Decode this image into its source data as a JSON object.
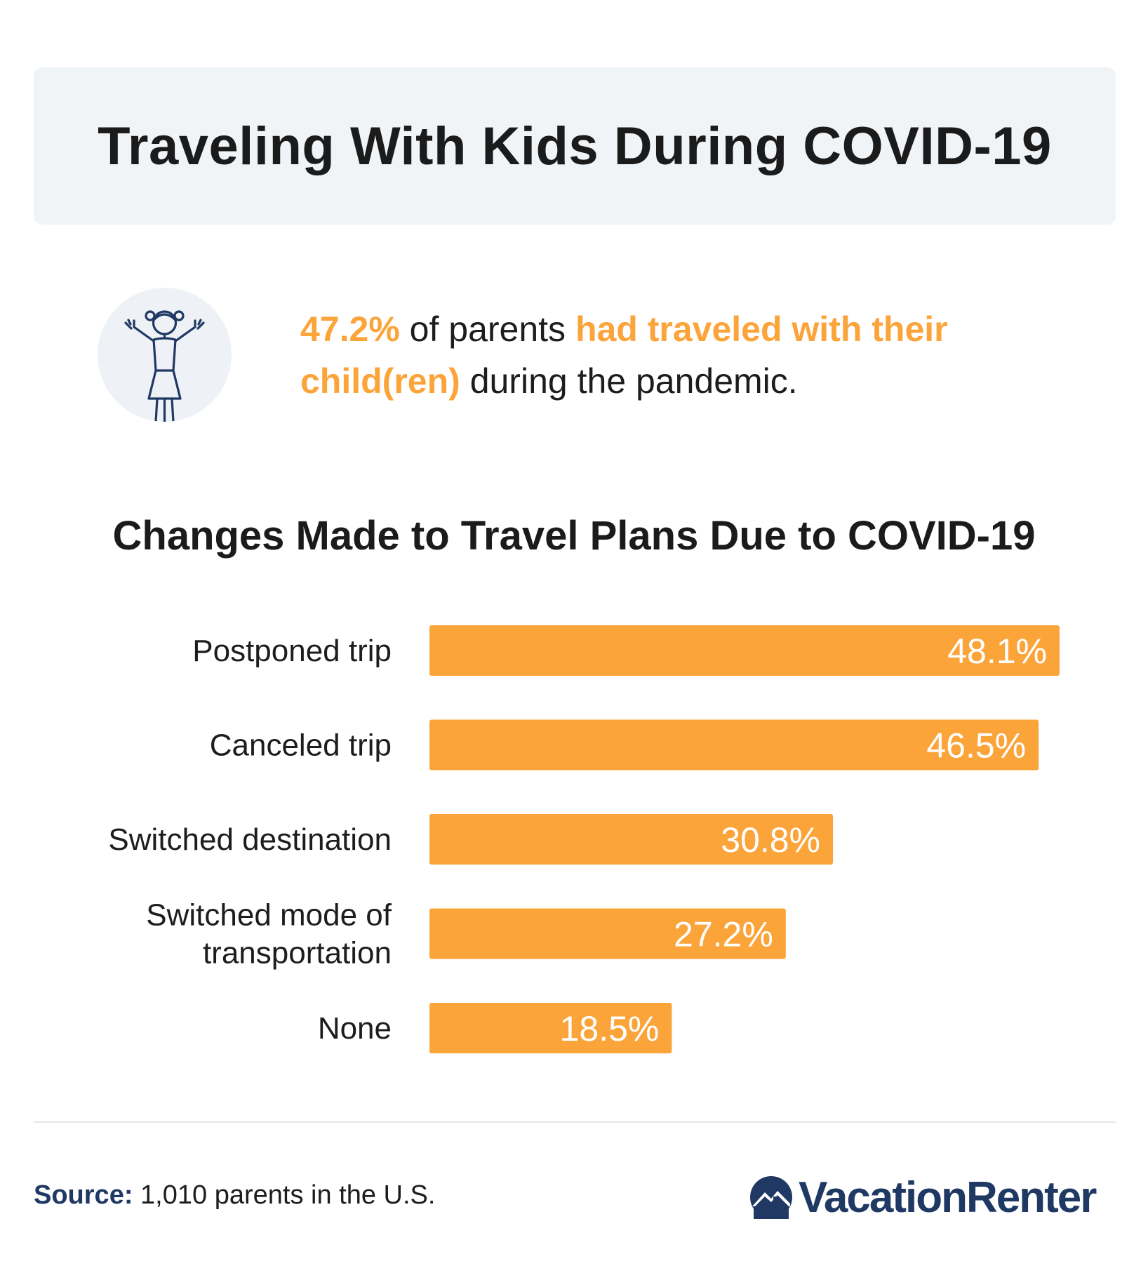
{
  "header": {
    "title": "Traveling With Kids During COVID-19"
  },
  "stat": {
    "percent": "47.2%",
    "text_1": " of parents ",
    "highlight": "had traveled with their child(ren)",
    "text_2": " during the pandemic.",
    "icon": "girl-arms-raised-icon"
  },
  "chart_data": {
    "type": "bar",
    "orientation": "horizontal",
    "title": "Changes Made to Travel Plans Due to COVID-19",
    "categories": [
      [
        "Postponed trip"
      ],
      [
        "Canceled trip"
      ],
      [
        "Switched destination"
      ],
      [
        "Switched mode of",
        "transportation"
      ],
      [
        "None"
      ]
    ],
    "values": [
      48.1,
      46.5,
      30.8,
      27.2,
      18.5
    ],
    "value_labels": [
      "48.1%",
      "46.5%",
      "30.8%",
      "27.2%",
      "18.5%"
    ],
    "xlim": [
      0,
      48.1
    ],
    "bar_color": "#fba43a",
    "label_color": "#ffffff",
    "grid": false,
    "legend": "none"
  },
  "footer": {
    "source_label": "Source:",
    "source_text": " 1,010 parents in the U.S.",
    "brand": "VacationRenter",
    "brand_icon": "mountain-house-logo-icon",
    "brand_color": "#1f3864"
  }
}
